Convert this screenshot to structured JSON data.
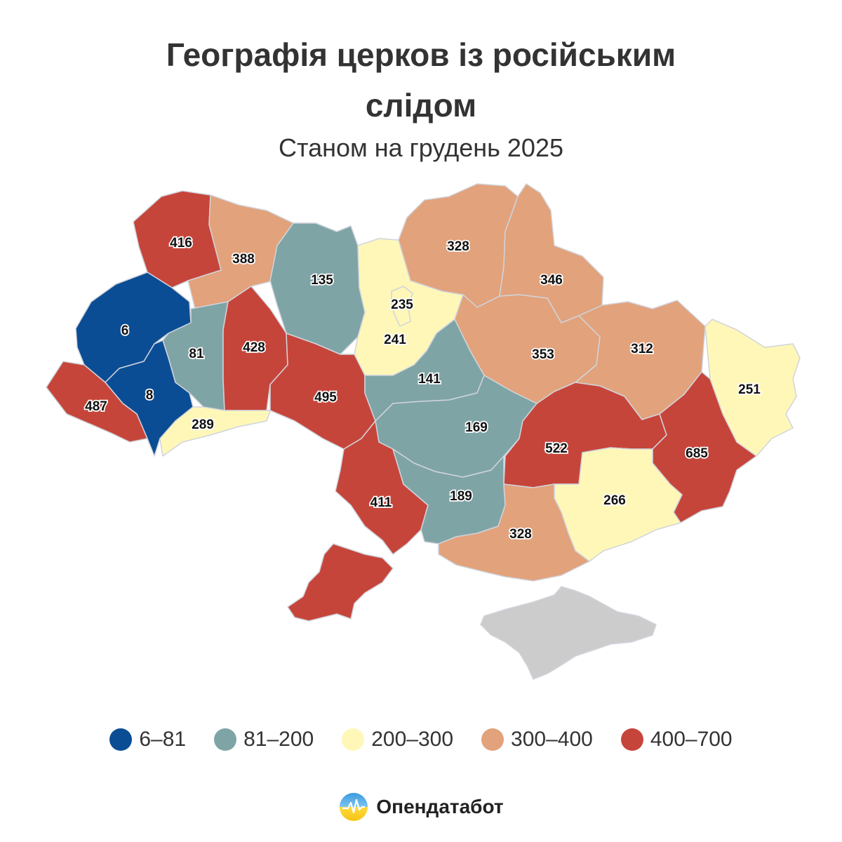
{
  "title_line1": "Географія церков із російським",
  "title_line2": "слідом",
  "subtitle": "Станом на грудень 2025",
  "brand": "Опендатабот",
  "legend": [
    {
      "label": "6–81",
      "color": "#0b4d94"
    },
    {
      "label": "81–200",
      "color": "#7fa4a6"
    },
    {
      "label": "200–300",
      "color": "#fff7b8"
    },
    {
      "label": "300–400",
      "color": "#e2a27b"
    },
    {
      "label": "400–700",
      "color": "#c6453a"
    }
  ],
  "crimea_color": "#cccccc",
  "regions": [
    {
      "id": "volyn",
      "value": 416,
      "color": "#c6453a"
    },
    {
      "id": "rivne",
      "value": 388,
      "color": "#e2a27b"
    },
    {
      "id": "zhytomyr",
      "value": 135,
      "color": "#7fa4a6"
    },
    {
      "id": "kyiv-oblast",
      "value": 235,
      "color": "#fff7b8"
    },
    {
      "id": "kyiv-city",
      "value": 241,
      "color": "#fff7b8"
    },
    {
      "id": "chernihiv",
      "value": 328,
      "color": "#e2a27b"
    },
    {
      "id": "sumy",
      "value": 346,
      "color": "#e2a27b"
    },
    {
      "id": "poltava",
      "value": 353,
      "color": "#e2a27b"
    },
    {
      "id": "kharkiv",
      "value": 312,
      "color": "#e2a27b"
    },
    {
      "id": "luhansk",
      "value": 251,
      "color": "#fff7b8"
    },
    {
      "id": "lviv",
      "value": 6,
      "color": "#0b4d94"
    },
    {
      "id": "ternopil",
      "value": 81,
      "color": "#7fa4a6"
    },
    {
      "id": "khmelnytskyi",
      "value": 428,
      "color": "#c6453a"
    },
    {
      "id": "vinnytsia",
      "value": 495,
      "color": "#c6453a"
    },
    {
      "id": "ivano-frankivsk",
      "value": 8,
      "color": "#0b4d94"
    },
    {
      "id": "zakarpattia",
      "value": 487,
      "color": "#c6453a"
    },
    {
      "id": "chernivtsi",
      "value": 289,
      "color": "#fff7b8"
    },
    {
      "id": "cherkasy",
      "value": 141,
      "color": "#7fa4a6"
    },
    {
      "id": "kirovohrad",
      "value": 169,
      "color": "#7fa4a6"
    },
    {
      "id": "dnipropetrovsk",
      "value": 522,
      "color": "#c6453a"
    },
    {
      "id": "donetsk",
      "value": 685,
      "color": "#c6453a"
    },
    {
      "id": "zaporizhzhia",
      "value": 266,
      "color": "#fff7b8"
    },
    {
      "id": "odesa",
      "value": 411,
      "color": "#c6453a"
    },
    {
      "id": "mykolaiv",
      "value": 189,
      "color": "#7fa4a6"
    },
    {
      "id": "kherson",
      "value": 328,
      "color": "#e2a27b"
    }
  ]
}
